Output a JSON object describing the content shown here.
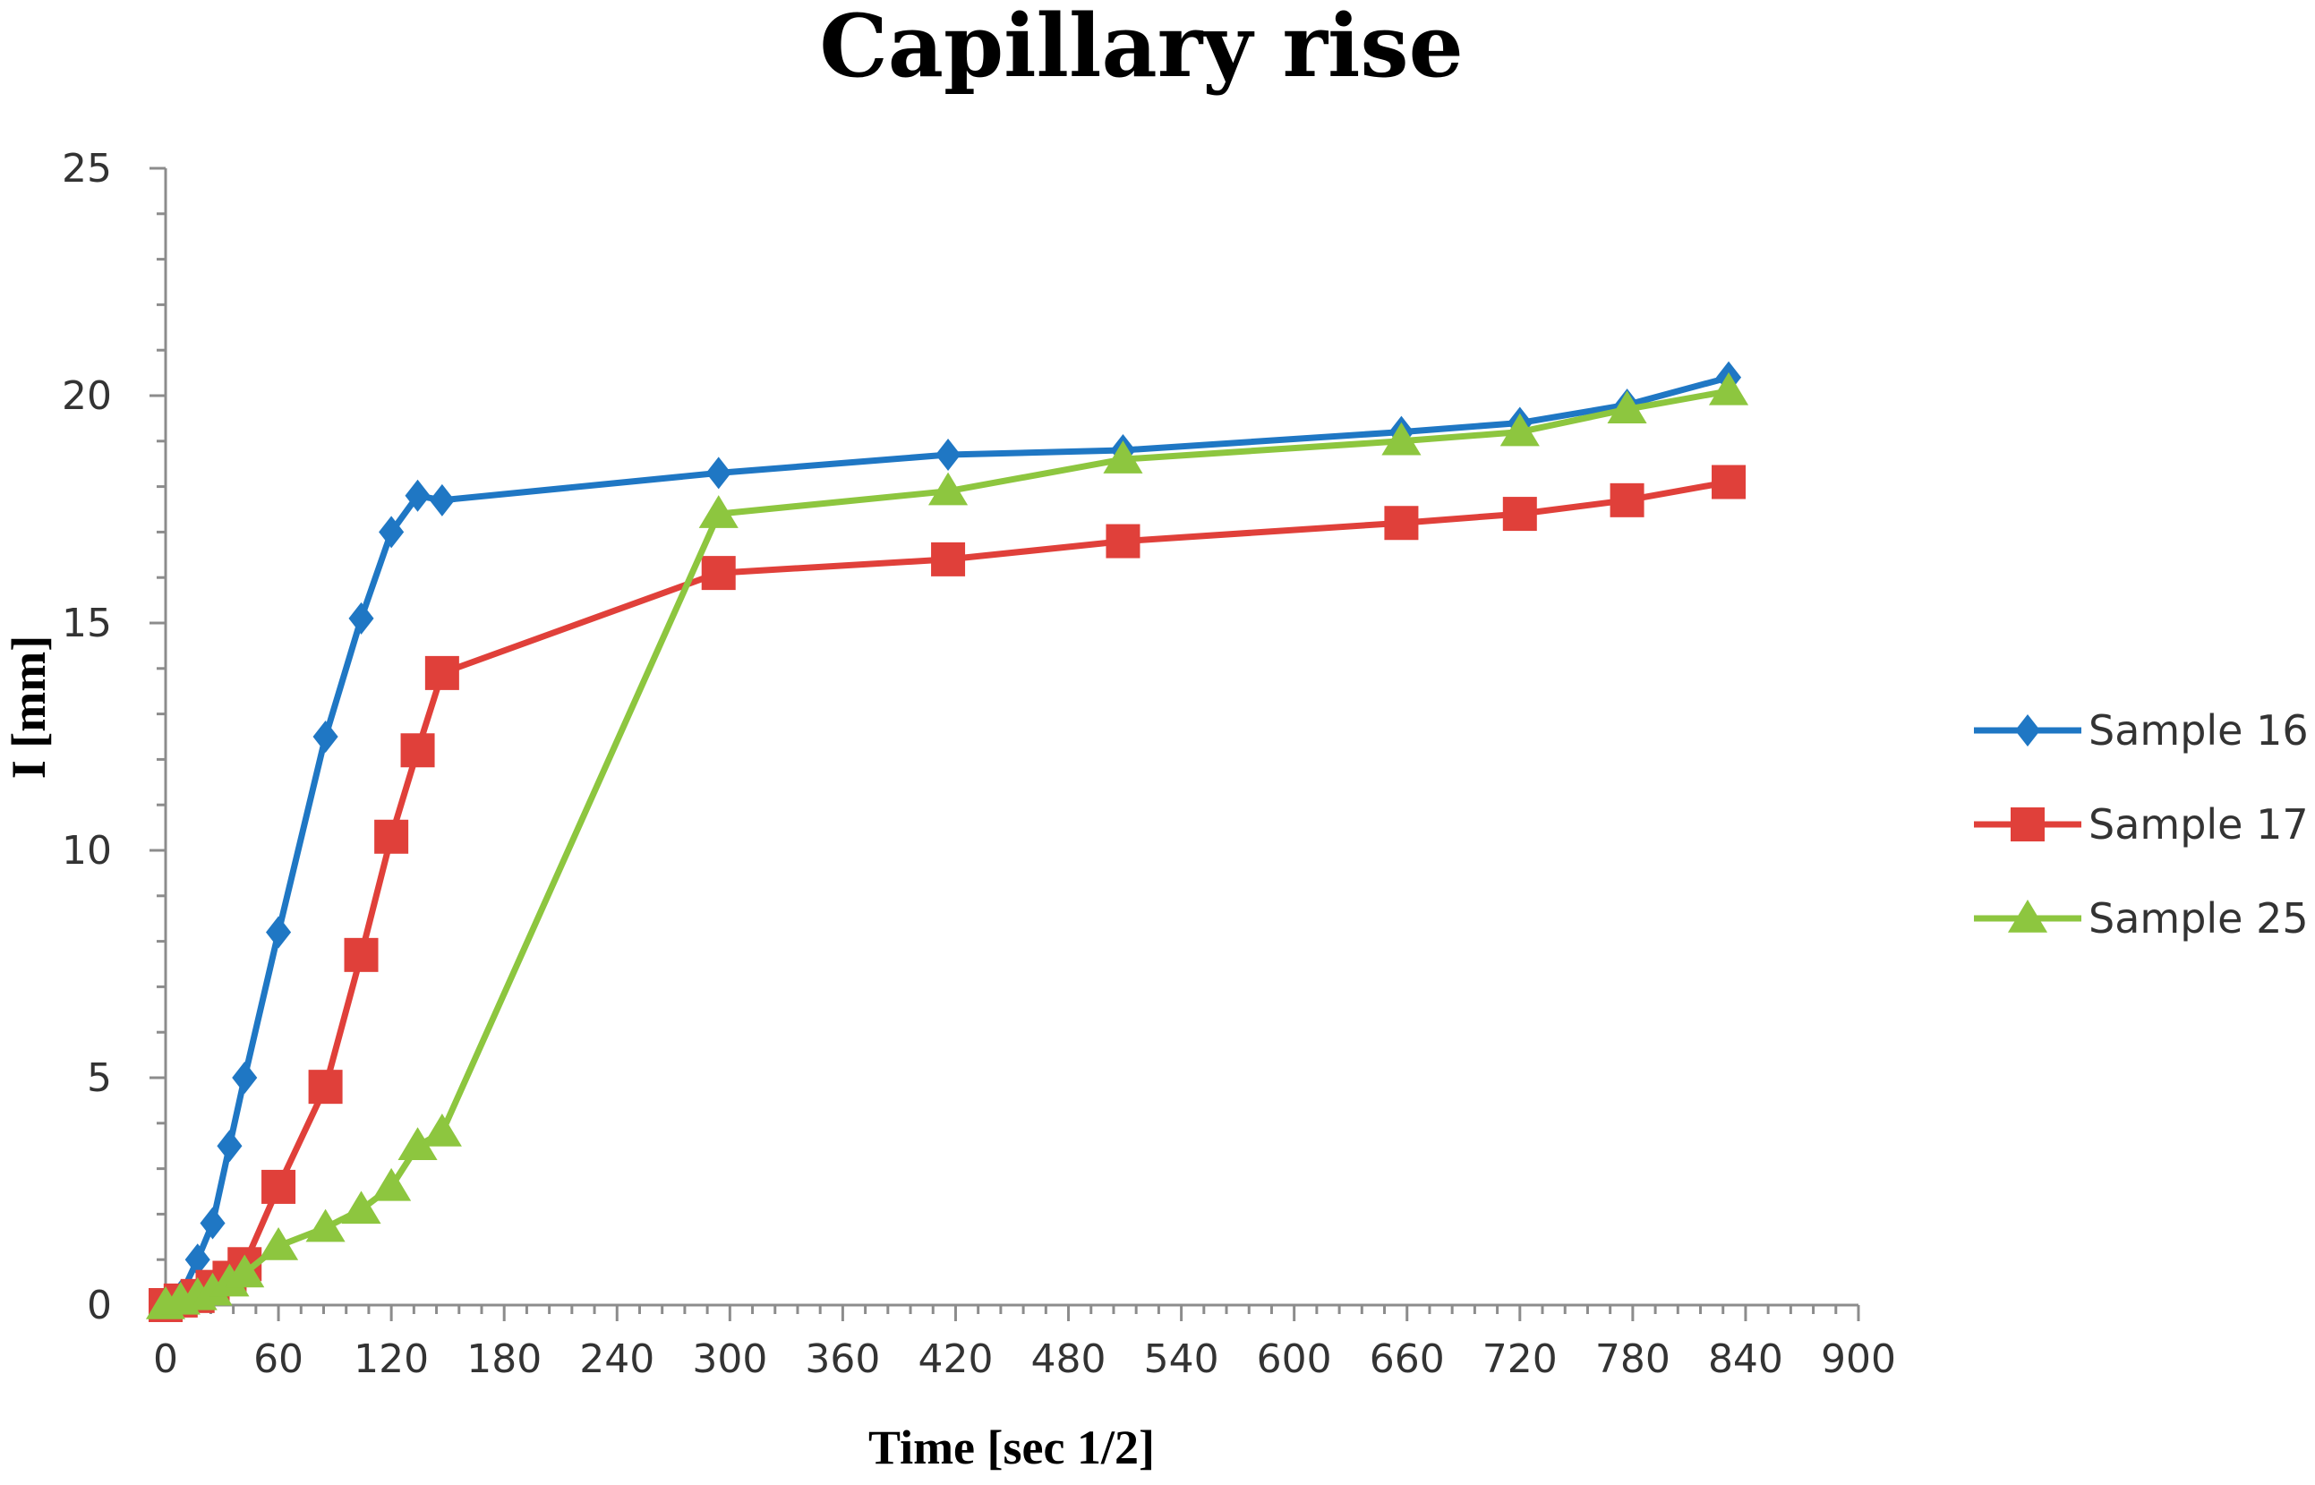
{
  "chart_data": {
    "type": "line",
    "title": "Capillary rise",
    "xlabel": "Time [sec 1/2]",
    "ylabel": "I [mm]",
    "xlim": [
      0,
      900
    ],
    "ylim": [
      0,
      25
    ],
    "x_major_ticks": [
      0,
      60,
      120,
      180,
      240,
      300,
      360,
      420,
      480,
      540,
      600,
      660,
      720,
      780,
      840,
      900
    ],
    "x_minor_step": 12,
    "y_major_ticks": [
      0,
      5,
      10,
      15,
      20,
      25
    ],
    "y_minor_step": 1,
    "grid": false,
    "legend_position": "right",
    "series": [
      {
        "name": "Sample 16",
        "color": "#1f77c4",
        "marker": "diamond",
        "points": [
          [
            0,
            0
          ],
          [
            8,
            0.2
          ],
          [
            17,
            1.0
          ],
          [
            25,
            1.8
          ],
          [
            34,
            3.5
          ],
          [
            42,
            5.0
          ],
          [
            60,
            8.2
          ],
          [
            85,
            12.5
          ],
          [
            104,
            15.1
          ],
          [
            120,
            17.0
          ],
          [
            134,
            17.8
          ],
          [
            147,
            17.7
          ],
          [
            294,
            18.3
          ],
          [
            416,
            18.7
          ],
          [
            509,
            18.8
          ],
          [
            657,
            19.2
          ],
          [
            720,
            19.4
          ],
          [
            777,
            19.8
          ],
          [
            831,
            20.4
          ]
        ]
      },
      {
        "name": "Sample 17",
        "color": "#e0403a",
        "marker": "square",
        "points": [
          [
            0,
            0
          ],
          [
            8,
            0.1
          ],
          [
            17,
            0.2
          ],
          [
            25,
            0.4
          ],
          [
            34,
            0.6
          ],
          [
            42,
            0.9
          ],
          [
            60,
            2.6
          ],
          [
            85,
            4.8
          ],
          [
            104,
            7.7
          ],
          [
            120,
            10.3
          ],
          [
            134,
            12.2
          ],
          [
            147,
            13.9
          ],
          [
            294,
            16.1
          ],
          [
            416,
            16.4
          ],
          [
            509,
            16.8
          ],
          [
            657,
            17.2
          ],
          [
            720,
            17.4
          ],
          [
            777,
            17.7
          ],
          [
            831,
            18.1
          ]
        ]
      },
      {
        "name": "Sample 25",
        "color": "#8dc63f",
        "marker": "triangle",
        "points": [
          [
            0,
            0
          ],
          [
            8,
            0.1
          ],
          [
            17,
            0.2
          ],
          [
            25,
            0.3
          ],
          [
            34,
            0.5
          ],
          [
            42,
            0.7
          ],
          [
            60,
            1.3
          ],
          [
            85,
            1.7
          ],
          [
            104,
            2.1
          ],
          [
            120,
            2.6
          ],
          [
            134,
            3.5
          ],
          [
            147,
            3.8
          ],
          [
            294,
            17.4
          ],
          [
            416,
            17.9
          ],
          [
            509,
            18.6
          ],
          [
            657,
            19.0
          ],
          [
            720,
            19.2
          ],
          [
            777,
            19.7
          ],
          [
            831,
            20.1
          ]
        ]
      }
    ]
  }
}
